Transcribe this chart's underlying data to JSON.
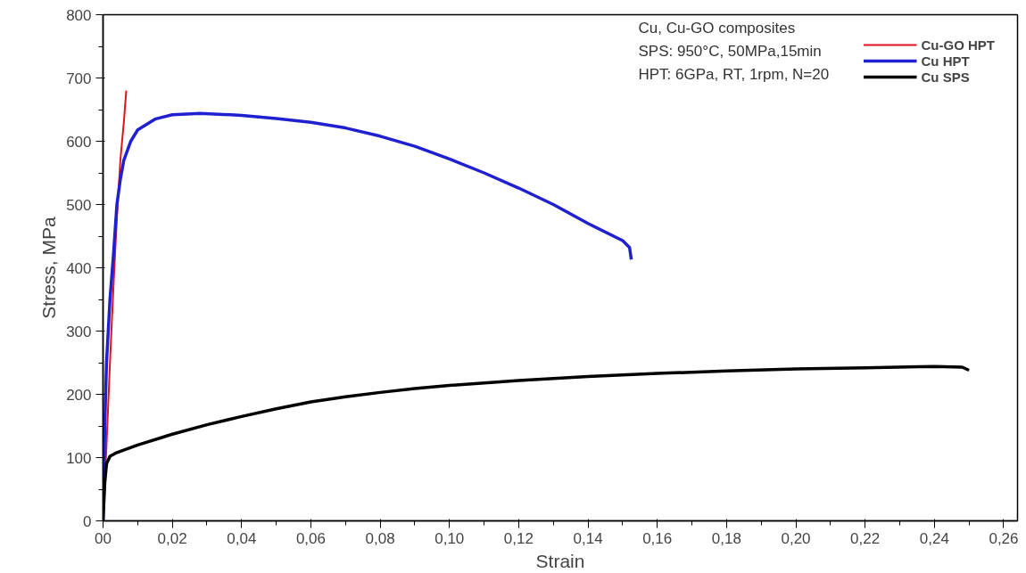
{
  "chart_data": {
    "type": "line",
    "xlabel": "Strain",
    "ylabel": "Stress, MPa",
    "annotations": [
      "Cu, Cu-GO composites",
      "SPS: 950°C, 50MPa,15min",
      "HPT: 6GPa, RT, 1rpm, N=20"
    ],
    "series": [
      {
        "name": "Cu-GO HPT",
        "color": "#e0141c",
        "x": [
          0,
          0.001,
          0.002,
          0.003,
          0.004,
          0.005,
          0.006,
          0.0067
        ],
        "values": [
          0,
          120,
          250,
          370,
          480,
          570,
          630,
          680
        ]
      },
      {
        "name": "Cu HPT",
        "color": "#2020d0",
        "x": [
          0,
          0.0005,
          0.001,
          0.002,
          0.003,
          0.004,
          0.005,
          0.006,
          0.008,
          0.01,
          0.015,
          0.02,
          0.028,
          0.04,
          0.05,
          0.06,
          0.07,
          0.08,
          0.09,
          0.1,
          0.11,
          0.12,
          0.13,
          0.14,
          0.15,
          0.152,
          0.1525
        ],
        "values": [
          0,
          150,
          250,
          350,
          420,
          500,
          540,
          570,
          600,
          618,
          635,
          642,
          644,
          641,
          636,
          630,
          621,
          608,
          592,
          572,
          550,
          526,
          500,
          470,
          443,
          432,
          413
        ]
      },
      {
        "name": "Cu SPS",
        "color": "#000000",
        "x": [
          0,
          0.0005,
          0.001,
          0.002,
          0.004,
          0.01,
          0.02,
          0.03,
          0.04,
          0.05,
          0.06,
          0.07,
          0.08,
          0.09,
          0.1,
          0.12,
          0.14,
          0.16,
          0.18,
          0.2,
          0.22,
          0.24,
          0.248,
          0.25
        ],
        "values": [
          0,
          60,
          90,
          102,
          108,
          120,
          137,
          152,
          165,
          177,
          188,
          196,
          203,
          209,
          214,
          222,
          228,
          233,
          237,
          240,
          242,
          244,
          243,
          238
        ]
      }
    ],
    "xlim": [
      0,
      0.264
    ],
    "ylim": [
      0,
      800
    ],
    "xticks": [
      {
        "value": 0,
        "label": "00"
      },
      {
        "value": 0.02,
        "label": "0,02"
      },
      {
        "value": 0.04,
        "label": "0,04"
      },
      {
        "value": 0.06,
        "label": "0,06"
      },
      {
        "value": 0.08,
        "label": "0,08"
      },
      {
        "value": 0.1,
        "label": "0,10"
      },
      {
        "value": 0.12,
        "label": "0,12"
      },
      {
        "value": 0.14,
        "label": "0,14"
      },
      {
        "value": 0.16,
        "label": "0,16"
      },
      {
        "value": 0.18,
        "label": "0,18"
      },
      {
        "value": 0.2,
        "label": "0,20"
      },
      {
        "value": 0.22,
        "label": "0,22"
      },
      {
        "value": 0.24,
        "label": "0,24"
      },
      {
        "value": 0.26,
        "label": "0,26"
      }
    ],
    "yticks": [
      0,
      100,
      200,
      300,
      400,
      500,
      600,
      700,
      800
    ],
    "grid": false,
    "legend": "top right",
    "marker": "none",
    "line_style": "solid"
  }
}
